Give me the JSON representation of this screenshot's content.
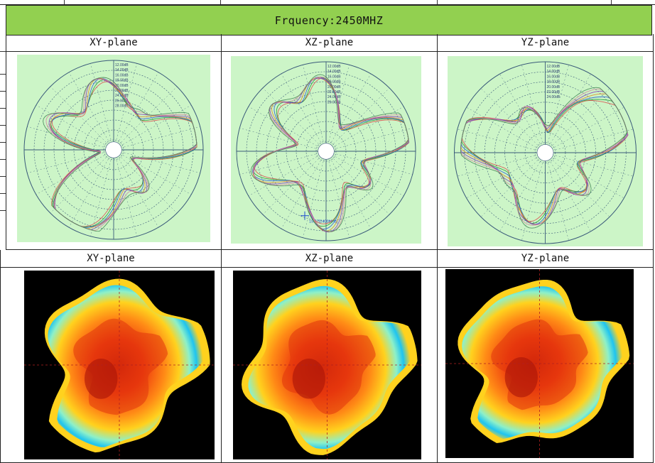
{
  "header": {
    "title": "Frquency:2450MHZ"
  },
  "polar_row": {
    "panels": [
      {
        "label": "XY-plane",
        "rings": [
          "12.00dB",
          "14.00dB",
          "16.00dB",
          "18.00dB",
          "20.00dB",
          "22.00dB",
          "24.00dB",
          "26.00dB",
          "28.00dB"
        ]
      },
      {
        "label": "XZ-plane",
        "rings": [
          "12.00dB",
          "14.00dB",
          "16.00dB",
          "18.00dB",
          "20.00dB",
          "22.00dB",
          "24.00dB",
          "26.00dB"
        ],
        "marker": "19.97[2400MHz]"
      },
      {
        "label": "YZ-plane",
        "rings": [
          "12.00dB",
          "14.00dB",
          "16.00dB",
          "18.00dB",
          "20.00dB",
          "22.00dB",
          "24.00dB"
        ]
      }
    ]
  },
  "pattern_row": {
    "panels": [
      {
        "label": "XY-plane"
      },
      {
        "label": "XZ-plane"
      },
      {
        "label": "YZ-plane"
      }
    ]
  },
  "colors": {
    "header_bg": "#92d050",
    "polar_bg": "#ccf5c7",
    "grid_line": "#3a5a7a",
    "trace_colors": [
      "#d9534f",
      "#2a9d3a",
      "#3060d0",
      "#e08a2a",
      "#8a3ab9",
      "#d48aa0",
      "#4a8a5a"
    ]
  }
}
